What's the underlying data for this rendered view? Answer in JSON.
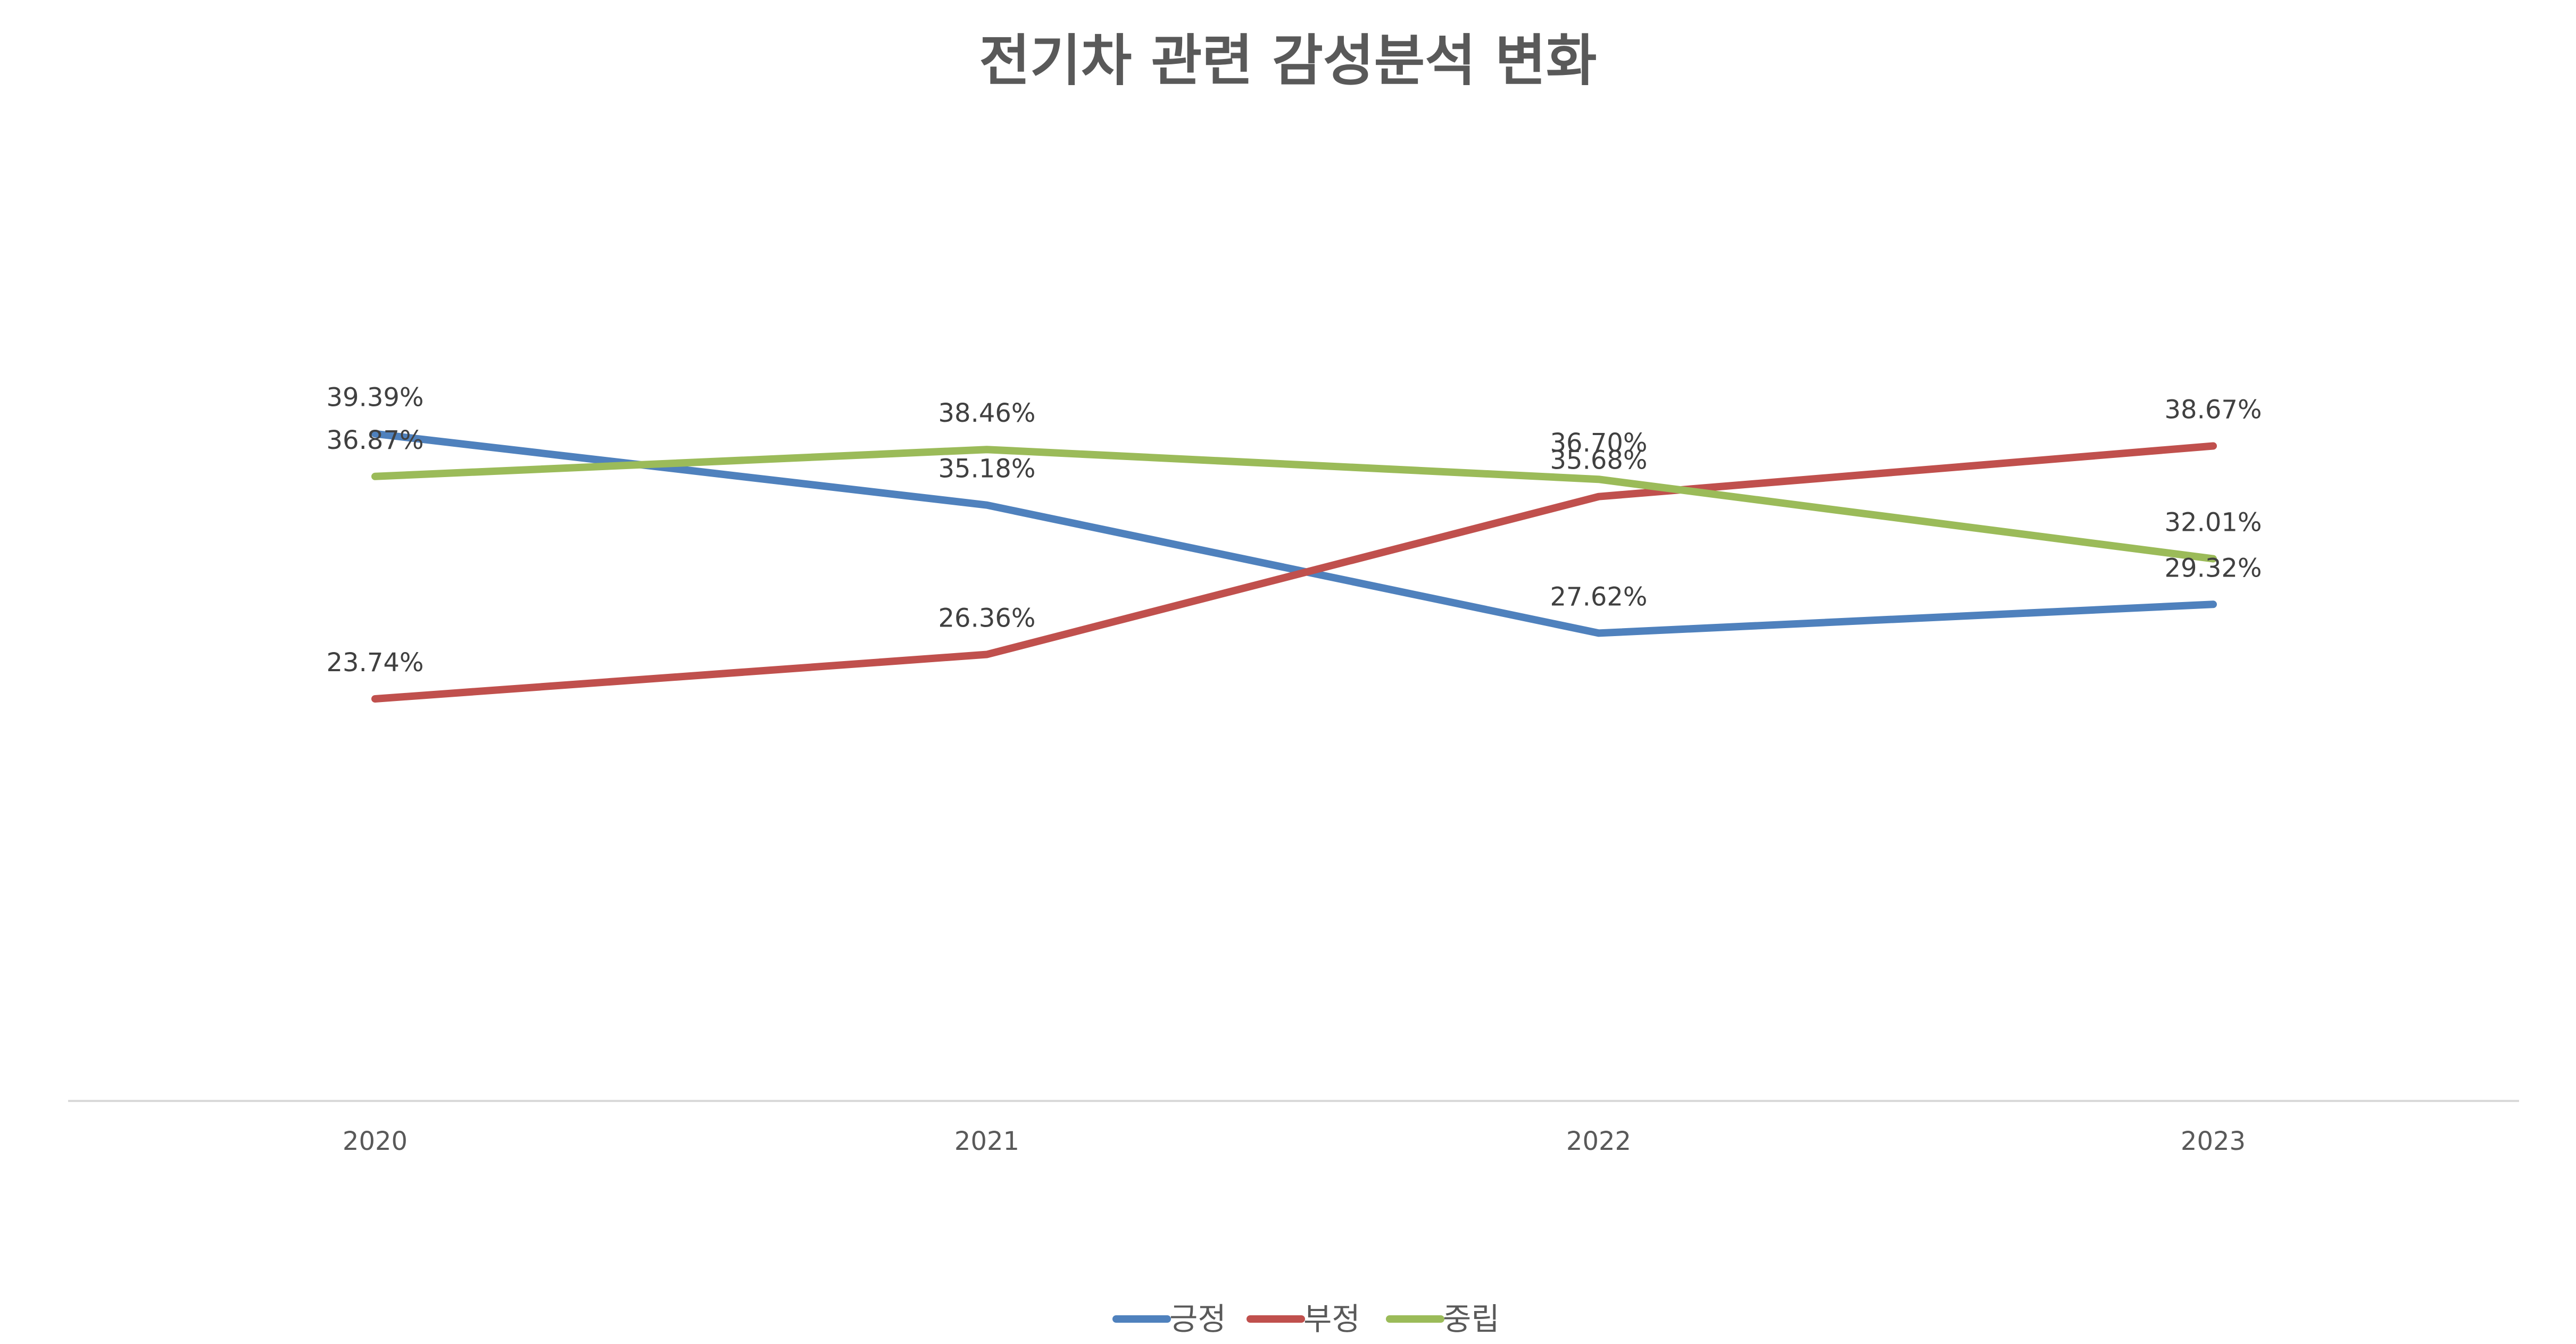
{
  "chart_data": {
    "type": "line",
    "title": "전기차 관련 감성분석 변화",
    "categories": [
      "2020",
      "2021",
      "2022",
      "2023"
    ],
    "series": [
      {
        "name": "긍정",
        "color": "#4F81BD",
        "values": [
          39.39,
          35.18,
          27.62,
          29.32
        ],
        "labels": [
          "39.39%",
          "35.18%",
          "27.62%",
          "29.32%"
        ]
      },
      {
        "name": "부정",
        "color": "#C0504D",
        "values": [
          23.74,
          26.36,
          35.68,
          38.67
        ],
        "labels": [
          "23.74%",
          "26.36%",
          "35.68%",
          "38.67%"
        ]
      },
      {
        "name": "중립",
        "color": "#9BBB59",
        "values": [
          36.87,
          38.46,
          36.7,
          32.01
        ],
        "labels": [
          "36.87%",
          "38.46%",
          "36.70%",
          "32.01%"
        ]
      }
    ],
    "ylim": [
      0,
      65
    ],
    "grid": false,
    "legend": "bottom",
    "axis_color": "#D9D9D9"
  }
}
